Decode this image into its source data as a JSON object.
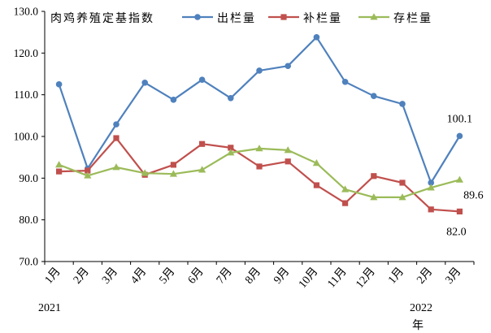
{
  "chart_data": {
    "type": "line",
    "title": "肉鸡养殖定基指数",
    "categories": [
      "1月",
      "2月",
      "3月",
      "4月",
      "5月",
      "6月",
      "7月",
      "8月",
      "9月",
      "10月",
      "11月",
      "12月",
      "1月",
      "2月",
      "3月"
    ],
    "year_labels": {
      "start": "2021",
      "end": "2022",
      "end_suffix": "年"
    },
    "ylim": [
      70,
      130
    ],
    "yticks": [
      "70.0",
      "80.0",
      "90.0",
      "100.0",
      "110.0",
      "120.0",
      "130.0"
    ],
    "grid": false,
    "legend": "top",
    "series": [
      {
        "name": "出栏量",
        "color": "#4F81BD",
        "marker": "circle",
        "values": [
          112.5,
          92.3,
          102.9,
          112.9,
          108.8,
          113.6,
          109.2,
          115.8,
          116.9,
          123.8,
          113.1,
          109.7,
          107.8,
          88.9,
          100.1
        ]
      },
      {
        "name": "补栏量",
        "color": "#C0504D",
        "marker": "square",
        "values": [
          91.6,
          91.8,
          99.6,
          90.8,
          93.2,
          98.2,
          97.3,
          92.8,
          94.0,
          88.3,
          84.0,
          90.5,
          88.9,
          82.5,
          82.0
        ]
      },
      {
        "name": "存栏量",
        "color": "#9BBB59",
        "marker": "triangle",
        "values": [
          93.2,
          90.6,
          92.6,
          91.2,
          91.0,
          92.0,
          96.1,
          97.1,
          96.7,
          93.6,
          87.3,
          85.4,
          85.4,
          87.7,
          89.6
        ]
      }
    ],
    "data_labels": [
      {
        "series": 0,
        "index": 14,
        "text": "100.1"
      },
      {
        "series": 2,
        "index": 14,
        "text": "89.6"
      },
      {
        "series": 1,
        "index": 14,
        "text": "82.0"
      }
    ]
  }
}
